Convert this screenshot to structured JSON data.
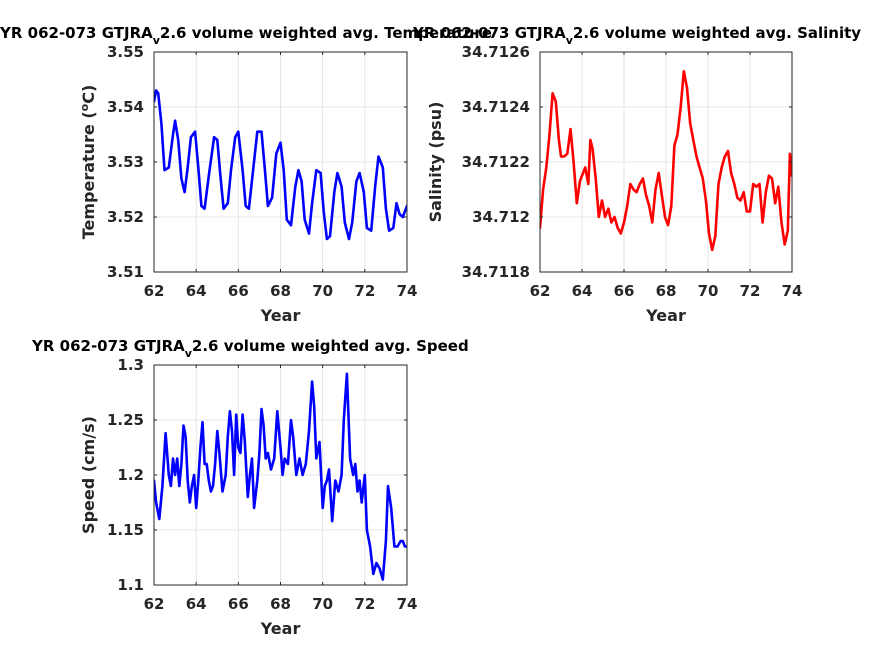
{
  "chart_data": [
    {
      "type": "line",
      "title": "YR 062-073 GTJRA",
      "title_sub": "v",
      "title_rest": "2.6 volume weighted avg. Temperature",
      "xlabel": "Year",
      "ylabel": "Temperature (",
      "ylabel_sup": "o",
      "ylabel_rest": "C)",
      "xlim": [
        62,
        74
      ],
      "ylim": [
        3.51,
        3.55
      ],
      "xticks": [
        62,
        64,
        66,
        68,
        70,
        72,
        74
      ],
      "yticks": [
        3.51,
        3.52,
        3.53,
        3.54,
        3.55
      ],
      "ytick_labels": [
        "3.51",
        "3.52",
        "3.53",
        "3.54",
        "3.55"
      ],
      "grid": true,
      "color": "#0000ff",
      "series": [
        {
          "x": [
            62.0,
            62.1,
            62.2,
            62.35,
            62.5,
            62.7,
            62.9,
            63.0,
            63.15,
            63.3,
            63.45,
            63.6,
            63.75,
            63.95,
            64.1,
            64.25,
            64.4,
            64.6,
            64.85,
            65.0,
            65.15,
            65.3,
            65.5,
            65.65,
            65.85,
            66.0,
            66.2,
            66.35,
            66.5,
            66.7,
            66.9,
            67.1,
            67.25,
            67.4,
            67.6,
            67.8,
            68.0,
            68.15,
            68.3,
            68.5,
            68.7,
            68.85,
            69.0,
            69.15,
            69.35,
            69.5,
            69.7,
            69.9,
            70.05,
            70.2,
            70.35,
            70.55,
            70.7,
            70.9,
            71.05,
            71.25,
            71.4,
            71.6,
            71.75,
            71.95,
            72.1,
            72.3,
            72.5,
            72.65,
            72.85,
            73.0,
            73.15,
            73.35,
            73.5,
            73.65,
            73.8,
            74.0
          ],
          "y": [
            3.541,
            3.543,
            3.5425,
            3.537,
            3.5285,
            3.529,
            3.535,
            3.5375,
            3.534,
            3.527,
            3.5245,
            3.529,
            3.5345,
            3.5355,
            3.529,
            3.522,
            3.5215,
            3.5275,
            3.5345,
            3.534,
            3.5275,
            3.5215,
            3.5225,
            3.5285,
            3.5345,
            3.5355,
            3.5285,
            3.522,
            3.5215,
            3.5285,
            3.5355,
            3.5355,
            3.529,
            3.522,
            3.5235,
            3.5315,
            3.5335,
            3.5285,
            3.5195,
            3.5185,
            3.5255,
            3.5285,
            3.5265,
            3.5195,
            3.517,
            3.5225,
            3.5285,
            3.528,
            3.521,
            3.516,
            3.5165,
            3.5245,
            3.528,
            3.5255,
            3.519,
            3.516,
            3.519,
            3.5265,
            3.528,
            3.5245,
            3.518,
            3.5175,
            3.526,
            3.531,
            3.529,
            3.5215,
            3.5175,
            3.518,
            3.5225,
            3.5205,
            3.52,
            3.522
          ]
        }
      ]
    },
    {
      "type": "line",
      "title": "YR 062-073 GTJRA",
      "title_sub": "v",
      "title_rest": "2.6 volume weighted avg. Salinity",
      "xlabel": "Year",
      "ylabel": "Salinity (psu)",
      "xlim": [
        62,
        74
      ],
      "ylim": [
        34.7118,
        34.7126
      ],
      "xticks": [
        62,
        64,
        66,
        68,
        70,
        72,
        74
      ],
      "yticks": [
        34.7118,
        34.712,
        34.7122,
        34.7124,
        34.7126
      ],
      "ytick_labels": [
        "34.7118",
        "34.712",
        "34.7122",
        "34.7124",
        "34.7126"
      ],
      "grid": true,
      "color": "#ff0000",
      "series": [
        {
          "x": [
            62.0,
            62.15,
            62.3,
            62.45,
            62.6,
            62.75,
            62.9,
            63.0,
            63.15,
            63.3,
            63.45,
            63.6,
            63.75,
            63.9,
            64.0,
            64.15,
            64.3,
            64.4,
            64.5,
            64.65,
            64.8,
            64.95,
            65.1,
            65.25,
            65.4,
            65.55,
            65.7,
            65.85,
            66.0,
            66.15,
            66.3,
            66.45,
            66.6,
            66.75,
            66.9,
            67.05,
            67.2,
            67.35,
            67.5,
            67.65,
            67.8,
            67.95,
            68.1,
            68.25,
            68.4,
            68.55,
            68.7,
            68.85,
            69.0,
            69.15,
            69.3,
            69.45,
            69.6,
            69.75,
            69.9,
            70.05,
            70.2,
            70.35,
            70.5,
            70.65,
            70.8,
            70.95,
            71.1,
            71.25,
            71.4,
            71.55,
            71.7,
            71.85,
            72.0,
            72.15,
            72.3,
            72.45,
            72.6,
            72.75,
            72.9,
            73.05,
            73.2,
            73.35,
            73.5,
            73.65,
            73.8,
            73.9,
            74.0
          ],
          "y": [
            34.71196,
            34.7121,
            34.71218,
            34.7123,
            34.71245,
            34.71242,
            34.71228,
            34.71222,
            34.71222,
            34.71223,
            34.71232,
            34.7122,
            34.71205,
            34.71213,
            34.71215,
            34.71218,
            34.71212,
            34.71228,
            34.71225,
            34.71214,
            34.712,
            34.71206,
            34.712,
            34.71203,
            34.71198,
            34.712,
            34.71196,
            34.71194,
            34.71198,
            34.71204,
            34.71212,
            34.7121,
            34.71209,
            34.71212,
            34.71214,
            34.71208,
            34.71204,
            34.71198,
            34.7121,
            34.71216,
            34.71208,
            34.712,
            34.71197,
            34.71204,
            34.71226,
            34.7123,
            34.7124,
            34.71253,
            34.71247,
            34.71234,
            34.71228,
            34.71222,
            34.71218,
            34.71214,
            34.71206,
            34.71194,
            34.71188,
            34.71193,
            34.71212,
            34.71218,
            34.71222,
            34.71224,
            34.71216,
            34.71212,
            34.71207,
            34.71206,
            34.71209,
            34.71202,
            34.71202,
            34.71212,
            34.71211,
            34.71212,
            34.71198,
            34.71209,
            34.71215,
            34.71214,
            34.71205,
            34.71211,
            34.71198,
            34.7119,
            34.71195,
            34.71223,
            34.71215
          ]
        }
      ]
    },
    {
      "type": "line",
      "title": "YR 062-073 GTJRA",
      "title_sub": "v",
      "title_rest": "2.6 volume weighted avg. Speed",
      "xlabel": "Year",
      "ylabel": "Speed (cm/s)",
      "xlim": [
        62,
        74
      ],
      "ylim": [
        1.1,
        1.3
      ],
      "xticks": [
        62,
        64,
        66,
        68,
        70,
        72,
        74
      ],
      "yticks": [
        1.1,
        1.15,
        1.2,
        1.25,
        1.3
      ],
      "ytick_labels": [
        "1.1",
        "1.15",
        "1.2",
        "1.25",
        "1.3"
      ],
      "grid": true,
      "color": "#0000ff",
      "series": [
        {
          "x": [
            62.0,
            62.1,
            62.25,
            62.4,
            62.55,
            62.7,
            62.8,
            62.9,
            63.0,
            63.1,
            63.2,
            63.3,
            63.4,
            63.5,
            63.6,
            63.7,
            63.8,
            63.9,
            64.0,
            64.1,
            64.2,
            64.3,
            64.4,
            64.5,
            64.6,
            64.7,
            64.8,
            64.9,
            65.0,
            65.1,
            65.25,
            65.4,
            65.5,
            65.6,
            65.7,
            65.8,
            65.9,
            66.0,
            66.1,
            66.2,
            66.3,
            66.45,
            66.55,
            66.65,
            66.75,
            66.9,
            67.0,
            67.1,
            67.2,
            67.3,
            67.4,
            67.55,
            67.7,
            67.85,
            68.0,
            68.1,
            68.2,
            68.35,
            68.5,
            68.6,
            68.75,
            68.9,
            69.05,
            69.2,
            69.35,
            69.5,
            69.6,
            69.7,
            69.85,
            70.0,
            70.1,
            70.2,
            70.3,
            70.45,
            70.6,
            70.75,
            70.9,
            71.0,
            71.15,
            71.3,
            71.45,
            71.55,
            71.65,
            71.75,
            71.85,
            72.0,
            72.1,
            72.25,
            72.4,
            72.55,
            72.7,
            72.85,
            73.0,
            73.1,
            73.25,
            73.4,
            73.55,
            73.7,
            73.8,
            73.9,
            74.0
          ],
          "y": [
            1.195,
            1.175,
            1.16,
            1.19,
            1.238,
            1.2,
            1.19,
            1.215,
            1.2,
            1.215,
            1.19,
            1.21,
            1.245,
            1.235,
            1.195,
            1.175,
            1.19,
            1.2,
            1.17,
            1.195,
            1.225,
            1.248,
            1.21,
            1.21,
            1.195,
            1.185,
            1.19,
            1.21,
            1.24,
            1.22,
            1.185,
            1.2,
            1.235,
            1.258,
            1.24,
            1.2,
            1.255,
            1.225,
            1.22,
            1.255,
            1.232,
            1.18,
            1.2,
            1.215,
            1.17,
            1.195,
            1.22,
            1.26,
            1.245,
            1.215,
            1.22,
            1.205,
            1.215,
            1.258,
            1.225,
            1.2,
            1.215,
            1.21,
            1.25,
            1.235,
            1.2,
            1.215,
            1.2,
            1.21,
            1.24,
            1.285,
            1.262,
            1.215,
            1.23,
            1.17,
            1.19,
            1.195,
            1.205,
            1.158,
            1.195,
            1.185,
            1.2,
            1.25,
            1.292,
            1.215,
            1.2,
            1.21,
            1.185,
            1.195,
            1.175,
            1.2,
            1.15,
            1.135,
            1.11,
            1.12,
            1.115,
            1.105,
            1.14,
            1.19,
            1.17,
            1.135,
            1.135,
            1.14,
            1.14,
            1.135,
            1.135
          ]
        }
      ]
    }
  ]
}
